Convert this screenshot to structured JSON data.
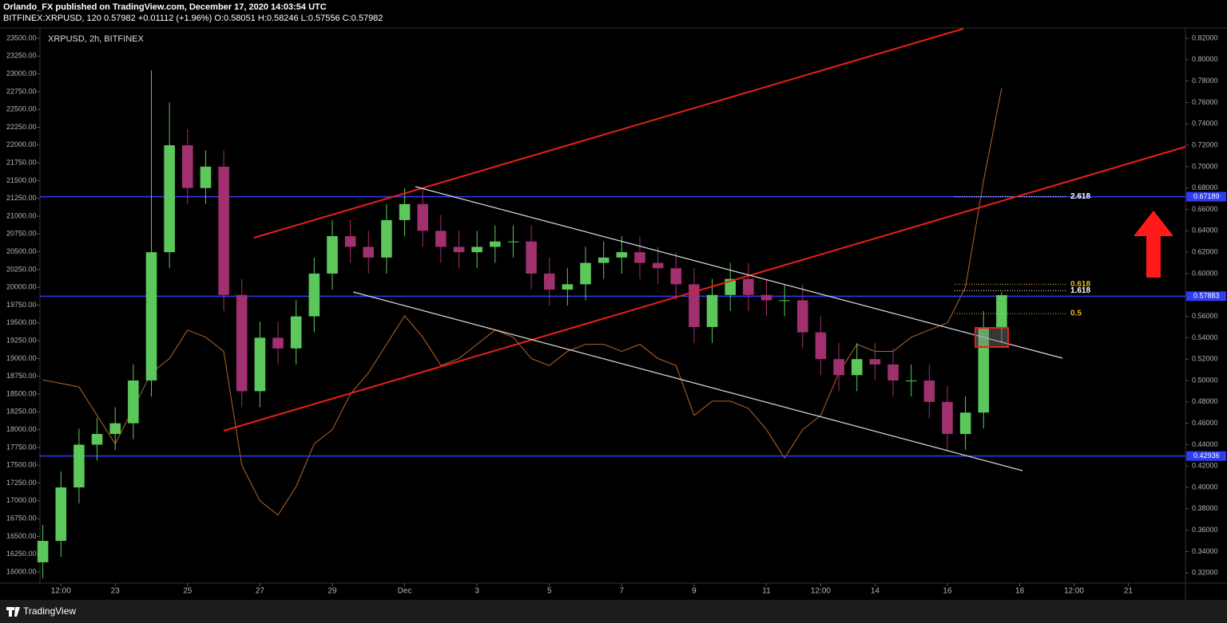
{
  "chart_data": {
    "type": "candlestick",
    "header": {
      "author": "Orlando_FX published on TradingView.com, December 17, 2020 14:03:54 UTC",
      "symbol": "BITFINEX:XRPUSD, 120",
      "last": "0.57982",
      "change": "+0.01112 (+1.96%)",
      "ohlc": [
        "O:0.58051",
        "H:0.58246",
        "L:0.57556",
        "C:0.57982"
      ]
    },
    "symbol_label": "XRPUSD, 2h, BITFINEX",
    "footer": "TradingView",
    "x": [
      -1,
      -0.5,
      0,
      0.5,
      1,
      1.5,
      2,
      2.5,
      3,
      3.5,
      4,
      4.5,
      5,
      5.5,
      6,
      6.5,
      7,
      7.5,
      8,
      8.5,
      9,
      9.5,
      10,
      10.5,
      11,
      11.5,
      12,
      12.5,
      13,
      13.5,
      14,
      14.5,
      15,
      15.5,
      16,
      16.5,
      17,
      17.5,
      18,
      18.5,
      19,
      19.5,
      20,
      20.5,
      21,
      21.5,
      22,
      22.5,
      23,
      23.5,
      24,
      24.5,
      25,
      25.5
    ],
    "xlim": [
      -1.08,
      30.58
    ],
    "xticks": [
      {
        "value": -0.5,
        "label": "12:00"
      },
      {
        "value": 1,
        "label": "23"
      },
      {
        "value": 3,
        "label": "25"
      },
      {
        "value": 5,
        "label": "27"
      },
      {
        "value": 7,
        "label": "29"
      },
      {
        "value": 9,
        "label": "Dec"
      },
      {
        "value": 11,
        "label": "3"
      },
      {
        "value": 13,
        "label": "5"
      },
      {
        "value": 15,
        "label": "7"
      },
      {
        "value": 17,
        "label": "9"
      },
      {
        "value": 19,
        "label": "11"
      },
      {
        "value": 20.5,
        "label": "12:00"
      },
      {
        "value": 22,
        "label": "14"
      },
      {
        "value": 24,
        "label": "16"
      },
      {
        "value": 26,
        "label": "18"
      },
      {
        "value": 27.5,
        "label": "12:00"
      },
      {
        "value": 29,
        "label": "21"
      }
    ],
    "ylim": [
      15843,
      23635
    ],
    "yticks": [
      {
        "value": 16000,
        "label": "16000.00"
      },
      {
        "value": 16250,
        "label": "16250.00"
      },
      {
        "value": 16500,
        "label": "16500.00"
      },
      {
        "value": 16750,
        "label": "16750.00"
      },
      {
        "value": 17000,
        "label": "17000.00"
      },
      {
        "value": 17250,
        "label": "17250.00"
      },
      {
        "value": 17500,
        "label": "17500.00"
      },
      {
        "value": 17750,
        "label": "17750.00"
      },
      {
        "value": 18000,
        "label": "18000.00"
      },
      {
        "value": 18250,
        "label": "18250.00"
      },
      {
        "value": 18500,
        "label": "18500.00"
      },
      {
        "value": 18750,
        "label": "18750.00"
      },
      {
        "value": 19000,
        "label": "19000.00"
      },
      {
        "value": 19250,
        "label": "19250.00"
      },
      {
        "value": 19500,
        "label": "19500.00"
      },
      {
        "value": 19750,
        "label": "19750.00"
      },
      {
        "value": 20000,
        "label": "20000.00"
      },
      {
        "value": 20250,
        "label": "20250.00"
      },
      {
        "value": 20500,
        "label": "20500.00"
      },
      {
        "value": 20750,
        "label": "20750.00"
      },
      {
        "value": 21000,
        "label": "21000.00"
      },
      {
        "value": 21250,
        "label": "21250.00"
      },
      {
        "value": 21500,
        "label": "21500.00"
      },
      {
        "value": 21750,
        "label": "21750.00"
      },
      {
        "value": 22000,
        "label": "22000.00"
      },
      {
        "value": 22250,
        "label": "22250.00"
      },
      {
        "value": 22500,
        "label": "22500.00"
      },
      {
        "value": 22750,
        "label": "22750.00"
      },
      {
        "value": 23000,
        "label": "23000.00"
      },
      {
        "value": 23250,
        "label": "23250.00"
      },
      {
        "value": 23500,
        "label": "23500.00"
      }
    ],
    "y2lim": [
      0.3105,
      0.829
    ],
    "y2ticks": [
      {
        "value": 0.32,
        "label": "0.32000"
      },
      {
        "value": 0.34,
        "label": "0.34000"
      },
      {
        "value": 0.36,
        "label": "0.36000"
      },
      {
        "value": 0.38,
        "label": "0.38000"
      },
      {
        "value": 0.4,
        "label": "0.40000"
      },
      {
        "value": 0.42,
        "label": "0.42000"
      },
      {
        "value": 0.44,
        "label": "0.44000"
      },
      {
        "value": 0.46,
        "label": "0.46000"
      },
      {
        "value": 0.48,
        "label": "0.48000"
      },
      {
        "value": 0.5,
        "label": "0.50000"
      },
      {
        "value": 0.52,
        "label": "0.52000"
      },
      {
        "value": 0.54,
        "label": "0.54000"
      },
      {
        "value": 0.56,
        "label": "0.56000"
      },
      {
        "value": 0.58,
        "label": "0.58000"
      },
      {
        "value": 0.6,
        "label": "0.60000"
      },
      {
        "value": 0.62,
        "label": "0.62000"
      },
      {
        "value": 0.64,
        "label": "0.64000"
      },
      {
        "value": 0.66,
        "label": "0.66000"
      },
      {
        "value": 0.68,
        "label": "0.68000"
      },
      {
        "value": 0.7,
        "label": "0.70000"
      },
      {
        "value": 0.72,
        "label": "0.72000"
      },
      {
        "value": 0.74,
        "label": "0.74000"
      },
      {
        "value": 0.76,
        "label": "0.76000"
      },
      {
        "value": 0.78,
        "label": "0.78000"
      },
      {
        "value": 0.8,
        "label": "0.80000"
      },
      {
        "value": 0.82,
        "label": "0.82000"
      }
    ],
    "candles": {
      "axis": "y2",
      "color_up": "#5cc85c",
      "color_down": "#a0306e",
      "open": [
        0.33,
        0.35,
        0.4,
        0.44,
        0.45,
        0.46,
        0.5,
        0.62,
        0.72,
        0.68,
        0.7,
        0.58,
        0.49,
        0.54,
        0.53,
        0.56,
        0.6,
        0.635,
        0.625,
        0.615,
        0.65,
        0.665,
        0.64,
        0.625,
        0.62,
        0.625,
        0.63,
        0.63,
        0.6,
        0.585,
        0.59,
        0.61,
        0.615,
        0.62,
        0.61,
        0.605,
        0.59,
        0.55,
        0.58,
        0.595,
        0.58,
        0.575,
        0.575,
        0.545,
        0.52,
        0.505,
        0.52,
        0.515,
        0.5,
        0.5,
        0.48,
        0.45,
        0.47,
        0.55
      ],
      "high": [
        0.365,
        0.415,
        0.455,
        0.465,
        0.475,
        0.515,
        0.79,
        0.76,
        0.735,
        0.715,
        0.715,
        0.595,
        0.555,
        0.555,
        0.575,
        0.615,
        0.65,
        0.65,
        0.64,
        0.665,
        0.68,
        0.68,
        0.655,
        0.64,
        0.64,
        0.645,
        0.645,
        0.645,
        0.615,
        0.605,
        0.625,
        0.63,
        0.635,
        0.635,
        0.625,
        0.62,
        0.605,
        0.595,
        0.61,
        0.61,
        0.595,
        0.59,
        0.59,
        0.56,
        0.535,
        0.535,
        0.535,
        0.53,
        0.515,
        0.515,
        0.495,
        0.485,
        0.565,
        0.5825
      ],
      "low": [
        0.315,
        0.335,
        0.385,
        0.425,
        0.435,
        0.445,
        0.485,
        0.605,
        0.665,
        0.665,
        0.565,
        0.475,
        0.475,
        0.515,
        0.515,
        0.545,
        0.585,
        0.61,
        0.6,
        0.6,
        0.635,
        0.625,
        0.61,
        0.605,
        0.605,
        0.61,
        0.615,
        0.585,
        0.57,
        0.57,
        0.575,
        0.595,
        0.6,
        0.595,
        0.59,
        0.575,
        0.535,
        0.535,
        0.565,
        0.565,
        0.56,
        0.56,
        0.53,
        0.505,
        0.49,
        0.49,
        0.5,
        0.485,
        0.485,
        0.465,
        0.435,
        0.435,
        0.455,
        0.535
      ],
      "close": [
        0.35,
        0.4,
        0.44,
        0.45,
        0.46,
        0.5,
        0.62,
        0.72,
        0.68,
        0.7,
        0.58,
        0.49,
        0.54,
        0.53,
        0.56,
        0.6,
        0.635,
        0.625,
        0.615,
        0.65,
        0.665,
        0.64,
        0.625,
        0.62,
        0.625,
        0.63,
        0.63,
        0.6,
        0.585,
        0.59,
        0.61,
        0.615,
        0.62,
        0.61,
        0.605,
        0.59,
        0.55,
        0.58,
        0.595,
        0.58,
        0.575,
        0.575,
        0.545,
        0.52,
        0.505,
        0.52,
        0.515,
        0.5,
        0.5,
        0.48,
        0.45,
        0.47,
        0.55,
        0.5798
      ]
    },
    "overlay": {
      "color": "#b5652a",
      "values": [
        18700,
        18650,
        18600,
        18200,
        17800,
        18300,
        18800,
        19000,
        19400,
        19300,
        19100,
        17500,
        17000,
        16800,
        17200,
        17800,
        18000,
        18500,
        18800,
        19200,
        19600,
        19300,
        18900,
        19000,
        19200,
        19400,
        19300,
        19000,
        18900,
        19100,
        19200,
        19200,
        19100,
        19200,
        19000,
        18900,
        18200,
        18400,
        18400,
        18300,
        18000,
        17600,
        18000,
        18200,
        18800,
        19200,
        19100,
        19100,
        19300,
        19400,
        19500,
        20000,
        21500,
        22800
      ]
    },
    "levels": {
      "color": "#2f3cf0",
      "values": [
        0.67189,
        0.57883,
        0.42936
      ]
    },
    "fib": [
      {
        "label": "2.618",
        "value": 0.67189,
        "color": "#ffffff"
      },
      {
        "label": "1.618",
        "value": 0.584,
        "color": "#ffffff"
      },
      {
        "label": "0.618",
        "value": 0.59,
        "color": "#e6b422"
      },
      {
        "label": "0.5",
        "value": 0.5626,
        "color": "#e6b422"
      }
    ]
  }
}
